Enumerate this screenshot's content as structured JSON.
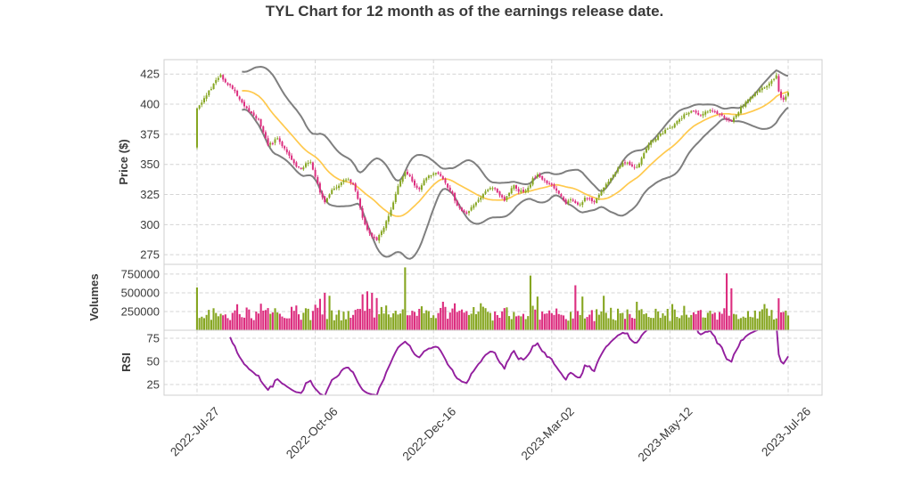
{
  "title": "TYL Chart for 12 month as of the earnings release date.",
  "ticker": "TYL",
  "period": "12 month",
  "colors": {
    "up_candle": "#86A621",
    "down_candle": "#DC2E7F",
    "sma_line": "#FFC94D",
    "bollinger_band": "#7F7F7F",
    "rsi_line": "#931F9E",
    "grid": "#D4D4D4",
    "panel_border": "#CFCFCF",
    "text": "#3A3A3A"
  },
  "seed": 42,
  "chart_data": [
    {
      "type": "candlestick",
      "panel": "price",
      "ylabel": "Price ($)",
      "ylim": [
        267,
        437
      ],
      "yticks": [
        275,
        300,
        325,
        350,
        375,
        400,
        425
      ],
      "grid": "dashed",
      "n_points": 251,
      "first_open": 364,
      "x_tick_indices": [
        0,
        50,
        100,
        150,
        200,
        250
      ],
      "x_tick_labels": [
        "2022-Jul-27",
        "2022-Oct-06",
        "2022-Dec-16",
        "2023-Mar-02",
        "2023-May-12",
        "2023-Jul-26"
      ],
      "overlays": [
        "bollinger_upper(20,2)",
        "sma(20)",
        "bollinger_lower(20,2)"
      ],
      "close_anchors": [
        [
          0,
          397
        ],
        [
          2,
          402
        ],
        [
          4,
          408
        ],
        [
          6,
          413
        ],
        [
          8,
          420
        ],
        [
          10,
          424
        ],
        [
          12,
          418
        ],
        [
          14,
          415
        ],
        [
          16,
          410
        ],
        [
          18,
          404
        ],
        [
          20,
          398
        ],
        [
          22,
          394
        ],
        [
          24,
          390
        ],
        [
          26,
          387
        ],
        [
          28,
          377
        ],
        [
          30,
          366
        ],
        [
          32,
          368
        ],
        [
          34,
          372
        ],
        [
          36,
          366
        ],
        [
          38,
          360
        ],
        [
          40,
          353
        ],
        [
          42,
          349
        ],
        [
          44,
          346
        ],
        [
          46,
          350
        ],
        [
          48,
          352
        ],
        [
          50,
          340
        ],
        [
          52,
          327
        ],
        [
          54,
          318
        ],
        [
          56,
          326
        ],
        [
          58,
          330
        ],
        [
          60,
          333
        ],
        [
          62,
          336
        ],
        [
          64,
          338
        ],
        [
          66,
          333
        ],
        [
          68,
          322
        ],
        [
          70,
          306
        ],
        [
          72,
          296
        ],
        [
          74,
          291
        ],
        [
          76,
          288
        ],
        [
          78,
          294
        ],
        [
          80,
          302
        ],
        [
          82,
          312
        ],
        [
          84,
          326
        ],
        [
          86,
          337
        ],
        [
          88,
          344
        ],
        [
          90,
          340
        ],
        [
          92,
          332
        ],
        [
          94,
          330
        ],
        [
          96,
          336
        ],
        [
          98,
          340
        ],
        [
          100,
          343
        ],
        [
          102,
          342
        ],
        [
          104,
          337
        ],
        [
          106,
          331
        ],
        [
          108,
          325
        ],
        [
          110,
          316
        ],
        [
          112,
          311
        ],
        [
          114,
          310
        ],
        [
          116,
          314
        ],
        [
          118,
          318
        ],
        [
          120,
          323
        ],
        [
          122,
          327
        ],
        [
          124,
          331
        ],
        [
          126,
          330
        ],
        [
          128,
          324
        ],
        [
          130,
          320
        ],
        [
          132,
          327
        ],
        [
          134,
          332
        ],
        [
          136,
          328
        ],
        [
          138,
          327
        ],
        [
          140,
          330
        ],
        [
          142,
          338
        ],
        [
          144,
          341
        ],
        [
          146,
          338
        ],
        [
          148,
          335
        ],
        [
          150,
          333
        ],
        [
          152,
          328
        ],
        [
          154,
          323
        ],
        [
          156,
          318
        ],
        [
          158,
          321
        ],
        [
          160,
          318
        ],
        [
          162,
          316
        ],
        [
          164,
          322
        ],
        [
          166,
          321
        ],
        [
          168,
          319
        ],
        [
          170,
          325
        ],
        [
          172,
          330
        ],
        [
          174,
          336
        ],
        [
          176,
          342
        ],
        [
          178,
          347
        ],
        [
          180,
          352
        ],
        [
          182,
          351
        ],
        [
          184,
          349
        ],
        [
          186,
          347
        ],
        [
          188,
          355
        ],
        [
          190,
          363
        ],
        [
          192,
          369
        ],
        [
          194,
          372
        ],
        [
          196,
          375
        ],
        [
          198,
          378
        ],
        [
          200,
          380
        ],
        [
          202,
          384
        ],
        [
          204,
          387
        ],
        [
          206,
          391
        ],
        [
          208,
          393
        ],
        [
          210,
          394
        ],
        [
          212,
          391
        ],
        [
          214,
          392
        ],
        [
          216,
          394
        ],
        [
          218,
          395
        ],
        [
          220,
          392
        ],
        [
          222,
          390
        ],
        [
          224,
          387
        ],
        [
          226,
          386
        ],
        [
          228,
          391
        ],
        [
          230,
          397
        ],
        [
          232,
          401
        ],
        [
          234,
          405
        ],
        [
          236,
          409
        ],
        [
          238,
          412
        ],
        [
          240,
          414
        ],
        [
          242,
          417
        ],
        [
          244,
          421
        ],
        [
          245,
          424
        ],
        [
          246,
          410
        ],
        [
          247,
          406
        ],
        [
          248,
          404
        ],
        [
          249,
          407
        ],
        [
          250,
          409
        ]
      ]
    },
    {
      "type": "bar",
      "panel": "volume",
      "ylabel": "Volumes",
      "ylim": [
        0,
        880000
      ],
      "yticks": [
        250000,
        500000,
        750000
      ],
      "base_range": [
        115000,
        280000
      ],
      "volume_spikes": [
        [
          52,
          420000
        ],
        [
          54,
          500000
        ],
        [
          56,
          460000
        ],
        [
          70,
          480000
        ],
        [
          72,
          520000
        ],
        [
          74,
          500000
        ],
        [
          76,
          430000
        ],
        [
          88,
          840000
        ],
        [
          104,
          380000
        ],
        [
          120,
          360000
        ],
        [
          141,
          730000
        ],
        [
          144,
          450000
        ],
        [
          160,
          600000
        ],
        [
          163,
          450000
        ],
        [
          172,
          460000
        ],
        [
          186,
          380000
        ],
        [
          201,
          350000
        ],
        [
          224,
          760000
        ],
        [
          226,
          560000
        ],
        [
          240,
          350000
        ]
      ]
    },
    {
      "type": "line",
      "panel": "rsi",
      "ylabel": "RSI",
      "ylim": [
        13.5,
        83.7
      ],
      "yticks": [
        25,
        50,
        75
      ],
      "derived": "rsi(14)"
    }
  ]
}
